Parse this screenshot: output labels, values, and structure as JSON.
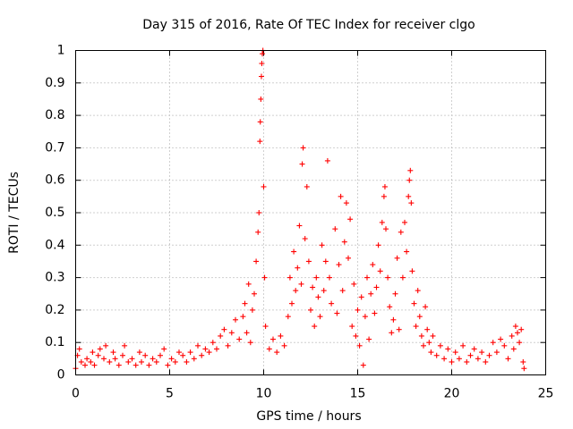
{
  "chart_data": {
    "type": "scatter",
    "title": "Day 315 of 2016, Rate Of TEC Index for receiver clgo",
    "xlabel": "GPS time / hours",
    "ylabel": "ROTI / TECUs",
    "xlim": [
      0,
      25
    ],
    "ylim": [
      0,
      1
    ],
    "x_ticks": [
      "0",
      "5",
      "10",
      "15",
      "20",
      "25"
    ],
    "y_ticks": [
      "0",
      "0.1",
      "0.2",
      "0.3",
      "0.4",
      "0.5",
      "0.6",
      "0.7",
      "0.8",
      "0.9",
      "1"
    ],
    "grid": true,
    "marker": "+",
    "series": [
      {
        "name": "ROTI",
        "color": "#ff0000",
        "points": [
          [
            0.0,
            0.02
          ],
          [
            0.1,
            0.06
          ],
          [
            0.2,
            0.08
          ],
          [
            0.3,
            0.04
          ],
          [
            0.5,
            0.03
          ],
          [
            0.6,
            0.05
          ],
          [
            0.8,
            0.04
          ],
          [
            0.9,
            0.07
          ],
          [
            1.0,
            0.03
          ],
          [
            1.2,
            0.06
          ],
          [
            1.3,
            0.08
          ],
          [
            1.5,
            0.05
          ],
          [
            1.6,
            0.09
          ],
          [
            1.8,
            0.04
          ],
          [
            2.0,
            0.07
          ],
          [
            2.1,
            0.05
          ],
          [
            2.3,
            0.03
          ],
          [
            2.5,
            0.06
          ],
          [
            2.6,
            0.09
          ],
          [
            2.8,
            0.04
          ],
          [
            3.0,
            0.05
          ],
          [
            3.2,
            0.03
          ],
          [
            3.4,
            0.07
          ],
          [
            3.5,
            0.04
          ],
          [
            3.7,
            0.06
          ],
          [
            3.9,
            0.03
          ],
          [
            4.1,
            0.05
          ],
          [
            4.3,
            0.04
          ],
          [
            4.5,
            0.06
          ],
          [
            4.7,
            0.08
          ],
          [
            4.9,
            0.03
          ],
          [
            5.1,
            0.05
          ],
          [
            5.3,
            0.04
          ],
          [
            5.5,
            0.07
          ],
          [
            5.7,
            0.06
          ],
          [
            5.9,
            0.04
          ],
          [
            6.1,
            0.07
          ],
          [
            6.3,
            0.05
          ],
          [
            6.5,
            0.09
          ],
          [
            6.7,
            0.06
          ],
          [
            6.9,
            0.08
          ],
          [
            7.1,
            0.07
          ],
          [
            7.3,
            0.1
          ],
          [
            7.5,
            0.08
          ],
          [
            7.7,
            0.12
          ],
          [
            7.9,
            0.14
          ],
          [
            8.1,
            0.09
          ],
          [
            8.3,
            0.13
          ],
          [
            8.5,
            0.17
          ],
          [
            8.7,
            0.11
          ],
          [
            8.9,
            0.18
          ],
          [
            9.0,
            0.22
          ],
          [
            9.1,
            0.13
          ],
          [
            9.2,
            0.28
          ],
          [
            9.3,
            0.1
          ],
          [
            9.4,
            0.2
          ],
          [
            9.5,
            0.25
          ],
          [
            9.6,
            0.35
          ],
          [
            9.7,
            0.44
          ],
          [
            9.75,
            0.5
          ],
          [
            9.8,
            0.72
          ],
          [
            9.82,
            0.78
          ],
          [
            9.85,
            0.85
          ],
          [
            9.88,
            0.92
          ],
          [
            9.9,
            0.96
          ],
          [
            9.93,
            0.99
          ],
          [
            9.96,
            1.0
          ],
          [
            10.0,
            0.58
          ],
          [
            10.05,
            0.3
          ],
          [
            10.1,
            0.15
          ],
          [
            10.3,
            0.08
          ],
          [
            10.5,
            0.11
          ],
          [
            10.7,
            0.07
          ],
          [
            10.9,
            0.12
          ],
          [
            11.1,
            0.09
          ],
          [
            11.3,
            0.18
          ],
          [
            11.4,
            0.3
          ],
          [
            11.5,
            0.22
          ],
          [
            11.6,
            0.38
          ],
          [
            11.7,
            0.26
          ],
          [
            11.8,
            0.33
          ],
          [
            11.9,
            0.46
          ],
          [
            12.0,
            0.28
          ],
          [
            12.05,
            0.65
          ],
          [
            12.1,
            0.7
          ],
          [
            12.2,
            0.42
          ],
          [
            12.3,
            0.58
          ],
          [
            12.4,
            0.35
          ],
          [
            12.5,
            0.2
          ],
          [
            12.6,
            0.27
          ],
          [
            12.7,
            0.15
          ],
          [
            12.8,
            0.3
          ],
          [
            12.9,
            0.24
          ],
          [
            13.0,
            0.18
          ],
          [
            13.1,
            0.4
          ],
          [
            13.2,
            0.26
          ],
          [
            13.3,
            0.35
          ],
          [
            13.4,
            0.66
          ],
          [
            13.5,
            0.3
          ],
          [
            13.6,
            0.22
          ],
          [
            13.8,
            0.45
          ],
          [
            13.9,
            0.19
          ],
          [
            14.0,
            0.34
          ],
          [
            14.1,
            0.55
          ],
          [
            14.2,
            0.26
          ],
          [
            14.3,
            0.41
          ],
          [
            14.4,
            0.53
          ],
          [
            14.5,
            0.36
          ],
          [
            14.6,
            0.48
          ],
          [
            14.7,
            0.15
          ],
          [
            14.8,
            0.28
          ],
          [
            14.9,
            0.12
          ],
          [
            15.0,
            0.2
          ],
          [
            15.1,
            0.09
          ],
          [
            15.2,
            0.24
          ],
          [
            15.3,
            0.03
          ],
          [
            15.4,
            0.18
          ],
          [
            15.5,
            0.3
          ],
          [
            15.6,
            0.11
          ],
          [
            15.7,
            0.25
          ],
          [
            15.8,
            0.34
          ],
          [
            15.9,
            0.19
          ],
          [
            16.0,
            0.27
          ],
          [
            16.1,
            0.4
          ],
          [
            16.2,
            0.32
          ],
          [
            16.3,
            0.47
          ],
          [
            16.4,
            0.55
          ],
          [
            16.45,
            0.58
          ],
          [
            16.5,
            0.45
          ],
          [
            16.6,
            0.3
          ],
          [
            16.7,
            0.21
          ],
          [
            16.8,
            0.13
          ],
          [
            16.9,
            0.17
          ],
          [
            17.0,
            0.25
          ],
          [
            17.1,
            0.36
          ],
          [
            17.2,
            0.14
          ],
          [
            17.3,
            0.44
          ],
          [
            17.4,
            0.3
          ],
          [
            17.5,
            0.47
          ],
          [
            17.6,
            0.38
          ],
          [
            17.7,
            0.55
          ],
          [
            17.75,
            0.6
          ],
          [
            17.8,
            0.63
          ],
          [
            17.85,
            0.53
          ],
          [
            17.9,
            0.32
          ],
          [
            18.0,
            0.22
          ],
          [
            18.1,
            0.15
          ],
          [
            18.2,
            0.26
          ],
          [
            18.3,
            0.18
          ],
          [
            18.4,
            0.12
          ],
          [
            18.5,
            0.09
          ],
          [
            18.6,
            0.21
          ],
          [
            18.7,
            0.14
          ],
          [
            18.8,
            0.1
          ],
          [
            18.9,
            0.07
          ],
          [
            19.0,
            0.12
          ],
          [
            19.2,
            0.06
          ],
          [
            19.4,
            0.09
          ],
          [
            19.6,
            0.05
          ],
          [
            19.8,
            0.08
          ],
          [
            20.0,
            0.04
          ],
          [
            20.2,
            0.07
          ],
          [
            20.4,
            0.05
          ],
          [
            20.6,
            0.09
          ],
          [
            20.8,
            0.04
          ],
          [
            21.0,
            0.06
          ],
          [
            21.2,
            0.08
          ],
          [
            21.4,
            0.05
          ],
          [
            21.6,
            0.07
          ],
          [
            21.8,
            0.04
          ],
          [
            22.0,
            0.06
          ],
          [
            22.2,
            0.1
          ],
          [
            22.4,
            0.07
          ],
          [
            22.6,
            0.11
          ],
          [
            22.8,
            0.09
          ],
          [
            23.0,
            0.05
          ],
          [
            23.2,
            0.12
          ],
          [
            23.3,
            0.08
          ],
          [
            23.4,
            0.15
          ],
          [
            23.5,
            0.13
          ],
          [
            23.6,
            0.1
          ],
          [
            23.7,
            0.14
          ],
          [
            23.8,
            0.04
          ],
          [
            23.85,
            0.02
          ]
        ]
      }
    ]
  }
}
